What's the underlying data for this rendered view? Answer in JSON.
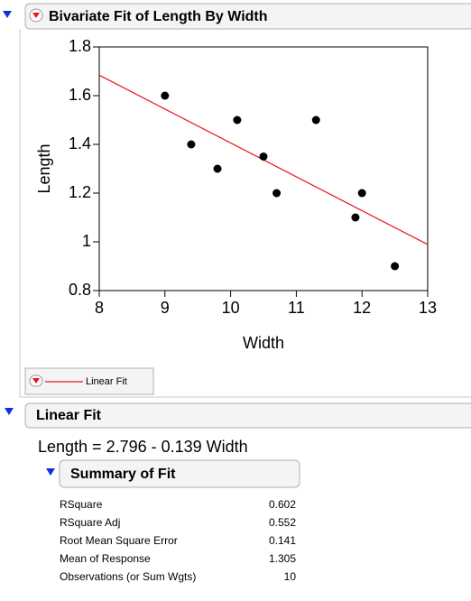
{
  "header": {
    "title": "Bivariate Fit of Length By Width"
  },
  "chart_data": {
    "type": "scatter",
    "x_label": "Width",
    "y_label": "Length",
    "x": [
      9,
      9.4,
      9.8,
      10.1,
      10.5,
      10.7,
      11.3,
      11.9,
      12,
      12.5
    ],
    "y": [
      1.6,
      1.4,
      1.3,
      1.5,
      1.35,
      1.2,
      1.5,
      1.1,
      1.2,
      0.9
    ],
    "color": "#000000",
    "xlim": [
      8,
      13
    ],
    "ylim": [
      0.8,
      1.8
    ],
    "xticks": [
      8,
      9,
      10,
      11,
      12,
      13
    ],
    "yticks": [
      0.8,
      1,
      1.2,
      1.4,
      1.6,
      1.8
    ],
    "fit": {
      "name": "Linear Fit",
      "intercept": 2.796,
      "slope": -0.139,
      "color": "#e8141c"
    }
  },
  "linear_fit": {
    "title": "Linear Fit",
    "equation": "Length = 2.796 - 0.139 Width"
  },
  "summary_of_fit": {
    "title": "Summary of Fit",
    "rows": [
      [
        "RSquare",
        0.602
      ],
      [
        "RSquare Adj",
        0.552
      ],
      [
        "Root Mean Square Error",
        0.141
      ],
      [
        "Mean of Response",
        1.305
      ],
      [
        "Observations (or Sum Wgts)",
        10
      ]
    ]
  }
}
